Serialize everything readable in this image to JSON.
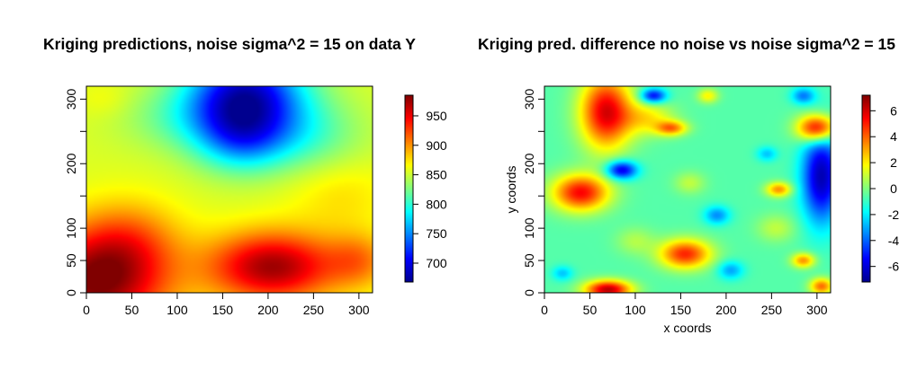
{
  "colors": {
    "jet_scale": [
      "#00008f",
      "#0000ff",
      "#0080ff",
      "#00ffff",
      "#80ff80",
      "#ffff00",
      "#ff8000",
      "#ff0000",
      "#800000"
    ]
  },
  "chart_data": [
    {
      "type": "heatmap",
      "title": "Kriging predictions, noise sigma^2 = 15 on data Y",
      "xlabel": "",
      "ylabel": "",
      "xlim": [
        0,
        315
      ],
      "ylim": [
        0,
        320
      ],
      "x_ticks": [
        "0",
        "50",
        "100",
        "150",
        "200",
        "250",
        "300"
      ],
      "y_ticks": [
        "0",
        "50",
        "100",
        "200",
        "300"
      ],
      "y_tick_marks": [
        0,
        50,
        100,
        150,
        200,
        250,
        300
      ],
      "colorbar": {
        "range": [
          668,
          985
        ],
        "ticks": [
          "700",
          "750",
          "800",
          "850",
          "900",
          "950"
        ]
      },
      "field": {
        "base": 855,
        "features": [
          {
            "x": 175,
            "y": 305,
            "amp": -165,
            "sx": 45,
            "sy": 48
          },
          {
            "x": 170,
            "y": 235,
            "amp": -70,
            "sx": 35,
            "sy": 35
          },
          {
            "x": 240,
            "y": 245,
            "amp": -40,
            "sx": 45,
            "sy": 40
          },
          {
            "x": 110,
            "y": 270,
            "amp": -30,
            "sx": 50,
            "sy": 35
          },
          {
            "x": 205,
            "y": 40,
            "amp": 120,
            "sx": 50,
            "sy": 38
          },
          {
            "x": 10,
            "y": 15,
            "amp": 125,
            "sx": 55,
            "sy": 55
          },
          {
            "x": 45,
            "y": 80,
            "amp": 45,
            "sx": 40,
            "sy": 45
          },
          {
            "x": 300,
            "y": 50,
            "amp": 45,
            "sx": 25,
            "sy": 30
          },
          {
            "x": 280,
            "y": 150,
            "amp": 20,
            "sx": 40,
            "sy": 40
          },
          {
            "x": 20,
            "y": 300,
            "amp": 10,
            "sx": 20,
            "sy": 20
          }
        ]
      }
    },
    {
      "type": "heatmap",
      "title": "Kriging pred. difference no noise vs noise sigma^2 = 15",
      "xlabel": "x coords",
      "ylabel": "y coords",
      "xlim": [
        0,
        315
      ],
      "ylim": [
        0,
        320
      ],
      "x_ticks": [
        "0",
        "50",
        "100",
        "150",
        "200",
        "250",
        "300"
      ],
      "y_ticks": [
        "0",
        "50",
        "100",
        "200",
        "300"
      ],
      "y_tick_marks": [
        0,
        50,
        100,
        150,
        200,
        250,
        300
      ],
      "colorbar": {
        "range": [
          -7.2,
          7.2
        ],
        "ticks": [
          "-6",
          "-4",
          "-2",
          "0",
          "2",
          "4",
          "6"
        ]
      },
      "field": {
        "base": -0.6,
        "features": [
          {
            "x": 68,
            "y": 280,
            "amp": 6.5,
            "sx": 20,
            "sy": 40
          },
          {
            "x": 115,
            "y": 270,
            "amp": 2.5,
            "sx": 20,
            "sy": 18
          },
          {
            "x": 140,
            "y": 255,
            "amp": 4,
            "sx": 12,
            "sy": 8
          },
          {
            "x": 120,
            "y": 305,
            "amp": -5,
            "sx": 10,
            "sy": 8
          },
          {
            "x": 85,
            "y": 190,
            "amp": -5.5,
            "sx": 12,
            "sy": 10
          },
          {
            "x": 40,
            "y": 155,
            "amp": 6,
            "sx": 22,
            "sy": 20
          },
          {
            "x": 155,
            "y": 60,
            "amp": 5.5,
            "sx": 20,
            "sy": 16
          },
          {
            "x": 70,
            "y": 5,
            "amp": 7,
            "sx": 18,
            "sy": 10
          },
          {
            "x": 300,
            "y": 255,
            "amp": 7,
            "sx": 15,
            "sy": 15
          },
          {
            "x": 258,
            "y": 160,
            "amp": 4,
            "sx": 10,
            "sy": 8
          },
          {
            "x": 285,
            "y": 50,
            "amp": 4,
            "sx": 9,
            "sy": 8
          },
          {
            "x": 305,
            "y": 10,
            "amp": 4.5,
            "sx": 9,
            "sy": 9
          },
          {
            "x": 305,
            "y": 180,
            "amp": -6,
            "sx": 15,
            "sy": 50
          },
          {
            "x": 190,
            "y": 120,
            "amp": -2.8,
            "sx": 10,
            "sy": 10
          },
          {
            "x": 205,
            "y": 35,
            "amp": -2.5,
            "sx": 10,
            "sy": 10
          },
          {
            "x": 20,
            "y": 30,
            "amp": -2,
            "sx": 8,
            "sy": 8
          },
          {
            "x": 285,
            "y": 305,
            "amp": -3,
            "sx": 9,
            "sy": 9
          },
          {
            "x": 180,
            "y": 305,
            "amp": 2.5,
            "sx": 8,
            "sy": 8
          },
          {
            "x": 245,
            "y": 215,
            "amp": -2,
            "sx": 8,
            "sy": 8
          },
          {
            "x": 160,
            "y": 170,
            "amp": 1.5,
            "sx": 12,
            "sy": 12
          },
          {
            "x": 255,
            "y": 100,
            "amp": 1.5,
            "sx": 15,
            "sy": 15
          },
          {
            "x": 100,
            "y": 80,
            "amp": 1.3,
            "sx": 15,
            "sy": 15
          }
        ]
      }
    }
  ]
}
